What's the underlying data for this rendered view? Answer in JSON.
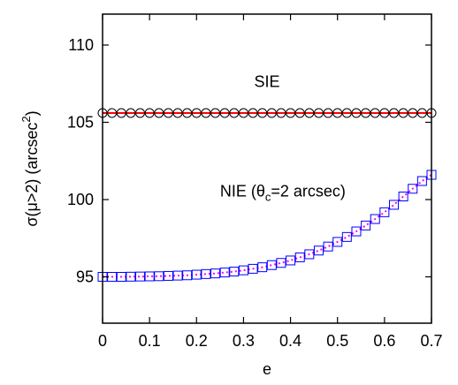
{
  "chart_data": {
    "type": "scatter",
    "xlabel": "e",
    "ylabel_parts": [
      "σ(μ>2) (arcsec",
      "2",
      ")"
    ],
    "xlim": [
      0,
      0.7
    ],
    "ylim": [
      92,
      112
    ],
    "x_ticks": [
      0,
      0.1,
      0.2,
      0.3,
      0.4,
      0.5,
      0.6,
      0.7
    ],
    "x_tick_labels": [
      "0",
      "0.1",
      "0.2",
      "0.3",
      "0.4",
      "0.5",
      "0.6",
      "0.7"
    ],
    "y_ticks": [
      95,
      100,
      105,
      110
    ],
    "y_tick_labels": [
      "95",
      "100",
      "105",
      "110"
    ],
    "grid": false,
    "annotations": {
      "sie": "SIE",
      "nie_prefix": "NIE (θ",
      "nie_sub": "c",
      "nie_suffix": "=2 arcsec)"
    },
    "series": [
      {
        "marker": "circle",
        "color": "#000000",
        "line_color": "#ff0000",
        "x": [
          0,
          0.02,
          0.04,
          0.06,
          0.08,
          0.1,
          0.12,
          0.14,
          0.16,
          0.18,
          0.2,
          0.22,
          0.24,
          0.26,
          0.28,
          0.3,
          0.32,
          0.34,
          0.36,
          0.38,
          0.4,
          0.42,
          0.44,
          0.46,
          0.48,
          0.5,
          0.52,
          0.54,
          0.56,
          0.58,
          0.6,
          0.62,
          0.64,
          0.66,
          0.68,
          0.7
        ],
        "y": [
          105.6,
          105.6,
          105.6,
          105.6,
          105.6,
          105.6,
          105.6,
          105.6,
          105.6,
          105.6,
          105.6,
          105.6,
          105.6,
          105.6,
          105.6,
          105.6,
          105.6,
          105.6,
          105.6,
          105.6,
          105.6,
          105.6,
          105.6,
          105.6,
          105.6,
          105.6,
          105.6,
          105.6,
          105.6,
          105.6,
          105.6,
          105.6,
          105.6,
          105.6,
          105.6,
          105.6
        ]
      },
      {
        "marker": "square",
        "color": "#0000ff",
        "line_color": "#ff00ff",
        "x": [
          0,
          0.02,
          0.04,
          0.06,
          0.08,
          0.1,
          0.12,
          0.14,
          0.16,
          0.18,
          0.2,
          0.22,
          0.24,
          0.26,
          0.28,
          0.3,
          0.32,
          0.34,
          0.36,
          0.38,
          0.4,
          0.42,
          0.44,
          0.46,
          0.48,
          0.5,
          0.52,
          0.54,
          0.56,
          0.58,
          0.6,
          0.62,
          0.64,
          0.66,
          0.68,
          0.7
        ],
        "y": [
          95.0,
          95.0,
          95.0,
          95.01,
          95.02,
          95.03,
          95.04,
          95.06,
          95.08,
          95.1,
          95.14,
          95.18,
          95.22,
          95.28,
          95.34,
          95.42,
          95.52,
          95.62,
          95.76,
          95.9,
          96.06,
          96.26,
          96.46,
          96.7,
          96.96,
          97.26,
          97.58,
          97.94,
          98.32,
          98.74,
          99.18,
          99.66,
          100.2,
          100.7,
          101.2,
          101.6
        ]
      }
    ]
  }
}
